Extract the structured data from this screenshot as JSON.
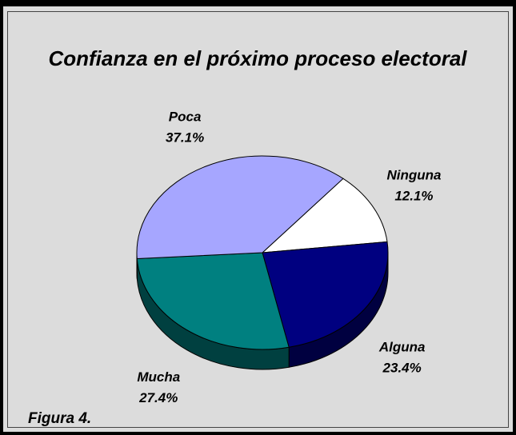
{
  "chart_data": {
    "type": "pie",
    "title": "Confianza en el próximo proceso electoral",
    "categories": [
      "Ninguna",
      "Alguna",
      "Mucha",
      "Poca"
    ],
    "values": [
      12.1,
      23.4,
      27.4,
      37.1
    ],
    "value_labels": [
      "12.1%",
      "23.4%",
      "27.4%",
      "37.1%"
    ],
    "colors": [
      "#ffffff",
      "#000080",
      "#008080",
      "#a6a6ff"
    ],
    "caption": "Figura 4."
  }
}
